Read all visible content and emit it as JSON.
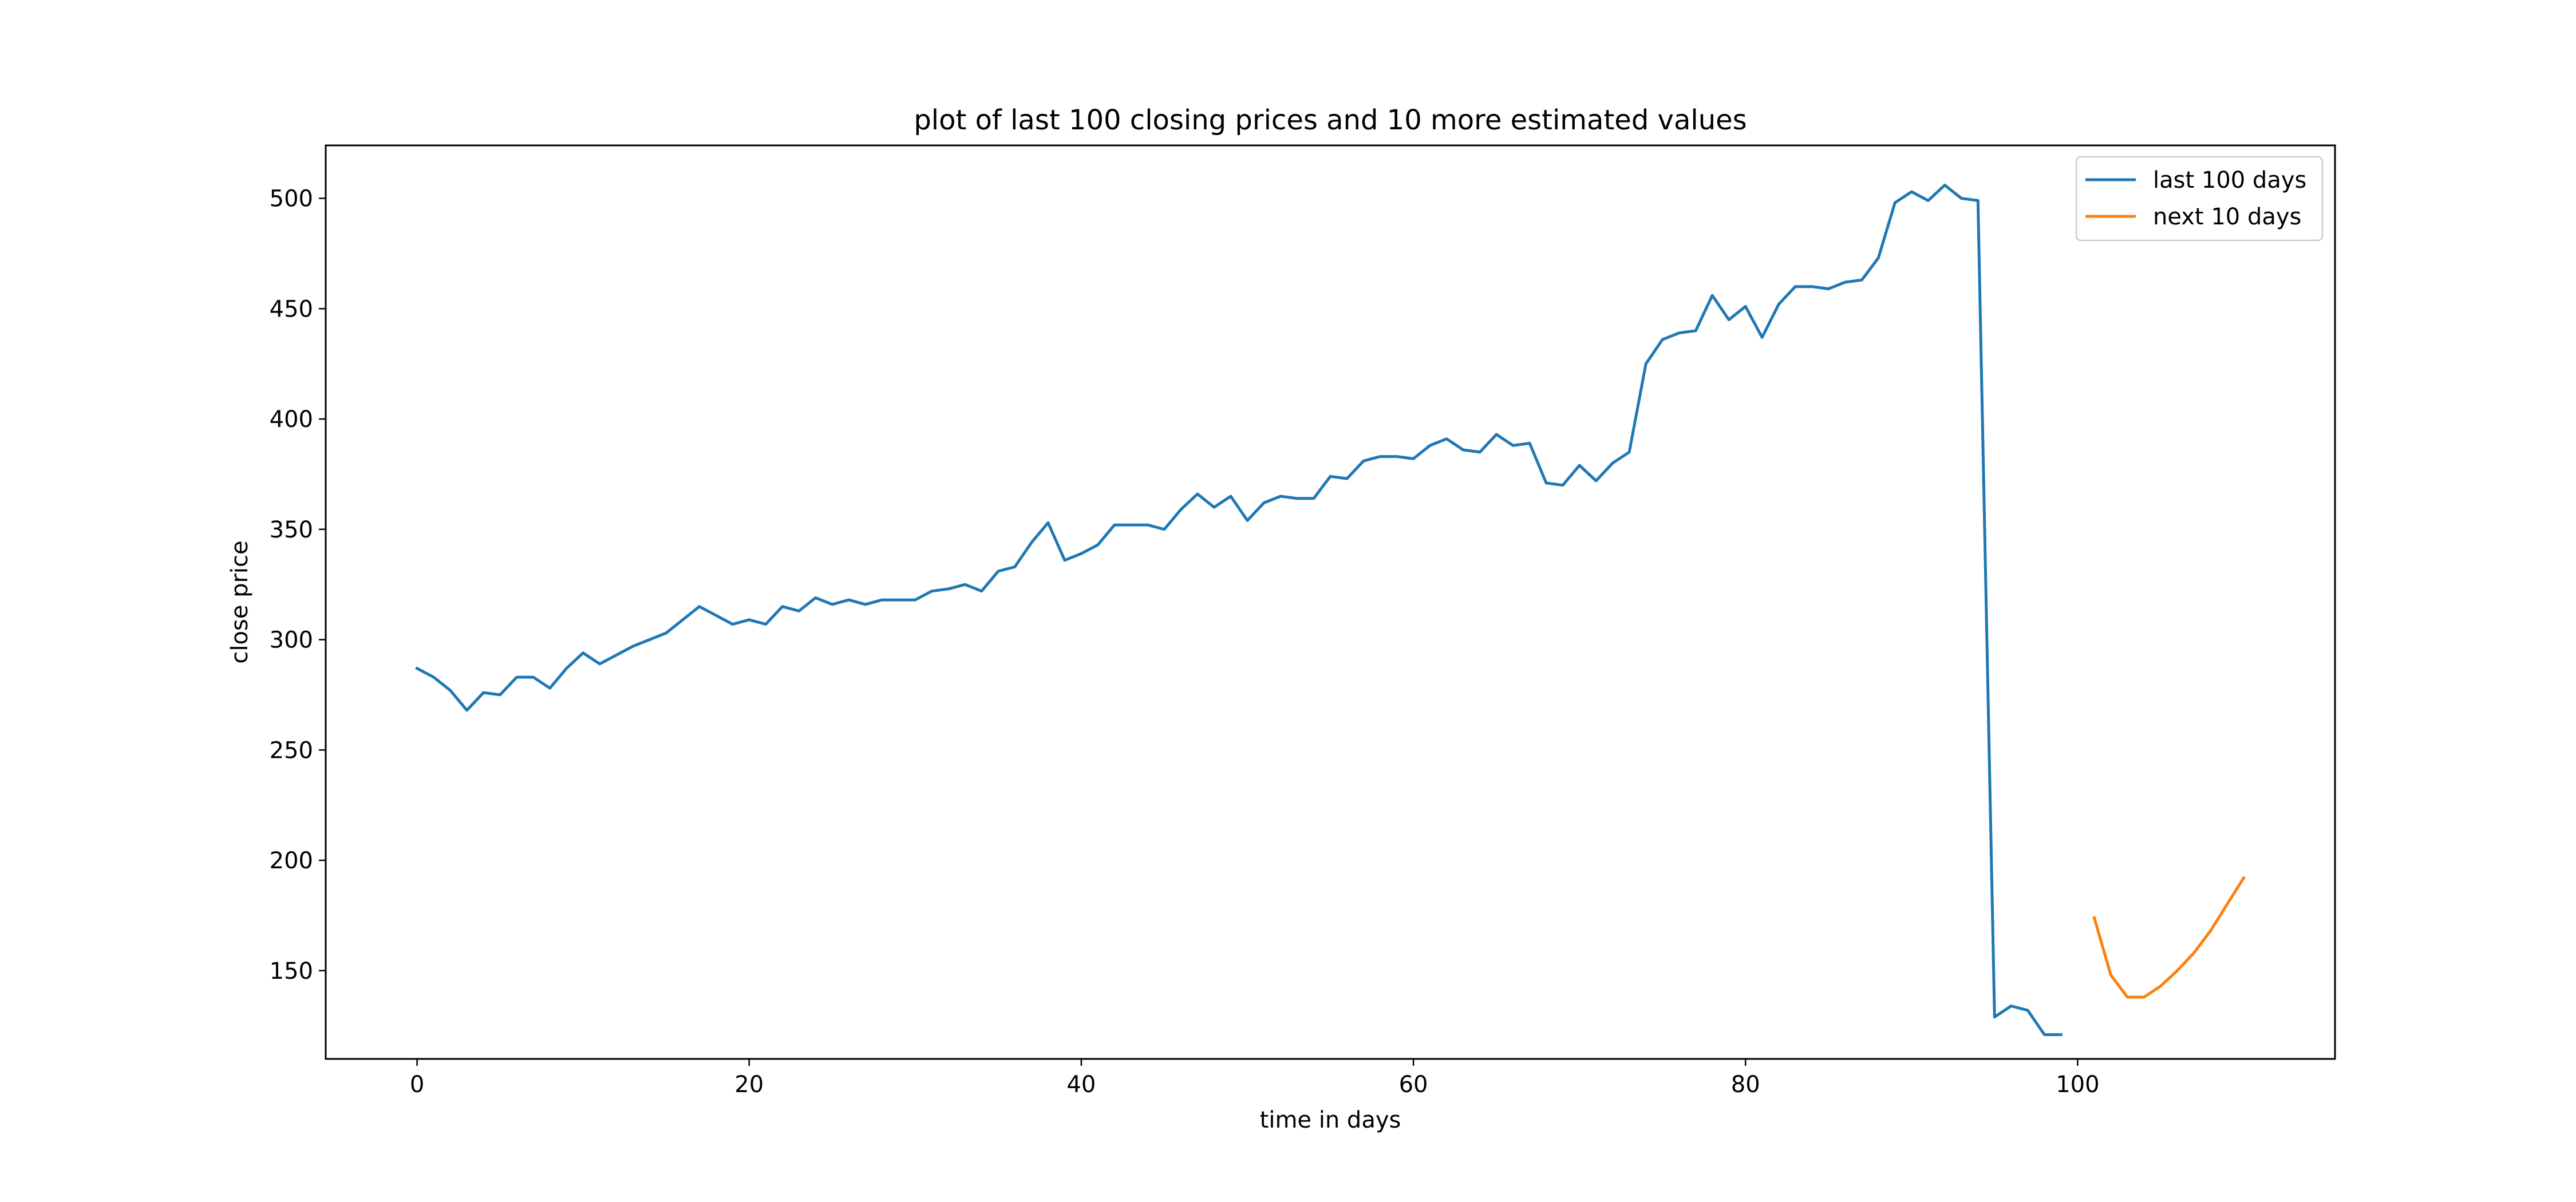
{
  "chart_data": {
    "type": "line",
    "title": "plot of last 100 closing prices and 10 more estimated values",
    "xlabel": "time in days",
    "ylabel": "close price",
    "xlim": [
      -5.5,
      115.5
    ],
    "ylim": [
      110,
      524
    ],
    "xticks": [
      0,
      20,
      40,
      60,
      80,
      100
    ],
    "yticks": [
      150,
      200,
      250,
      300,
      350,
      400,
      450,
      500
    ],
    "grid": false,
    "legend_position": "top-right",
    "series": [
      {
        "name": "last 100 days",
        "color": "#1f77b4",
        "x": [
          0,
          1,
          2,
          3,
          4,
          5,
          6,
          7,
          8,
          9,
          10,
          11,
          12,
          13,
          14,
          15,
          16,
          17,
          18,
          19,
          20,
          21,
          22,
          23,
          24,
          25,
          26,
          27,
          28,
          29,
          30,
          31,
          32,
          33,
          34,
          35,
          36,
          37,
          38,
          39,
          40,
          41,
          42,
          43,
          44,
          45,
          46,
          47,
          48,
          49,
          50,
          51,
          52,
          53,
          54,
          55,
          56,
          57,
          58,
          59,
          60,
          61,
          62,
          63,
          64,
          65,
          66,
          67,
          68,
          69,
          70,
          71,
          72,
          73,
          74,
          75,
          76,
          77,
          78,
          79,
          80,
          81,
          82,
          83,
          84,
          85,
          86,
          87,
          88,
          89,
          90,
          91,
          92,
          93,
          94,
          95,
          96,
          97,
          98,
          99
        ],
        "y": [
          287,
          283,
          277,
          268,
          276,
          275,
          283,
          283,
          278,
          287,
          294,
          289,
          293,
          297,
          300,
          303,
          309,
          315,
          311,
          307,
          309,
          307,
          315,
          313,
          319,
          316,
          318,
          316,
          318,
          318,
          318,
          322,
          323,
          325,
          322,
          331,
          333,
          344,
          353,
          336,
          339,
          343,
          352,
          352,
          352,
          350,
          359,
          366,
          360,
          365,
          354,
          362,
          365,
          364,
          364,
          374,
          373,
          381,
          383,
          383,
          382,
          388,
          391,
          386,
          385,
          393,
          388,
          389,
          371,
          370,
          379,
          372,
          380,
          385,
          425,
          436,
          439,
          440,
          456,
          445,
          451,
          437,
          452,
          460,
          460,
          459,
          462,
          463,
          473,
          498,
          503,
          499,
          506,
          500,
          499,
          129,
          134,
          132,
          121,
          121
        ]
      },
      {
        "name": "next 10 days",
        "color": "#ff7f0e",
        "x": [
          101,
          102,
          103,
          104,
          105,
          106,
          107,
          108,
          109,
          110
        ],
        "y": [
          174,
          148,
          138,
          138,
          143,
          150,
          158,
          168,
          180,
          192
        ]
      }
    ]
  }
}
